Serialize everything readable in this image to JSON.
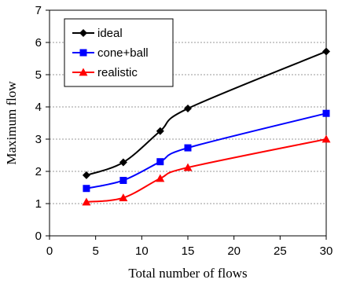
{
  "chart_data": {
    "type": "line",
    "title": "",
    "xlabel": "Total number of flows",
    "ylabel": "Maximum flow",
    "xlim": [
      0,
      30
    ],
    "ylim": [
      0,
      7
    ],
    "xticks": [
      "0",
      "5",
      "10",
      "15",
      "20",
      "25",
      "30"
    ],
    "yticks": [
      "0",
      "1",
      "2",
      "3",
      "4",
      "5",
      "6",
      "7"
    ],
    "grid": "horizontal dashed",
    "legend_position": "top-left",
    "x": [
      4,
      8,
      12,
      15,
      30
    ],
    "series": [
      {
        "name": "ideal",
        "values": [
          1.88,
          2.28,
          3.25,
          3.95,
          5.72
        ],
        "color": "#000000",
        "marker": "diamond"
      },
      {
        "name": "cone+ball",
        "values": [
          1.47,
          1.72,
          2.3,
          2.73,
          3.8
        ],
        "color": "#0000ff",
        "marker": "square"
      },
      {
        "name": "realistic",
        "values": [
          1.05,
          1.18,
          1.78,
          2.12,
          3.0
        ],
        "color": "#ff0000",
        "marker": "triangle"
      }
    ]
  }
}
